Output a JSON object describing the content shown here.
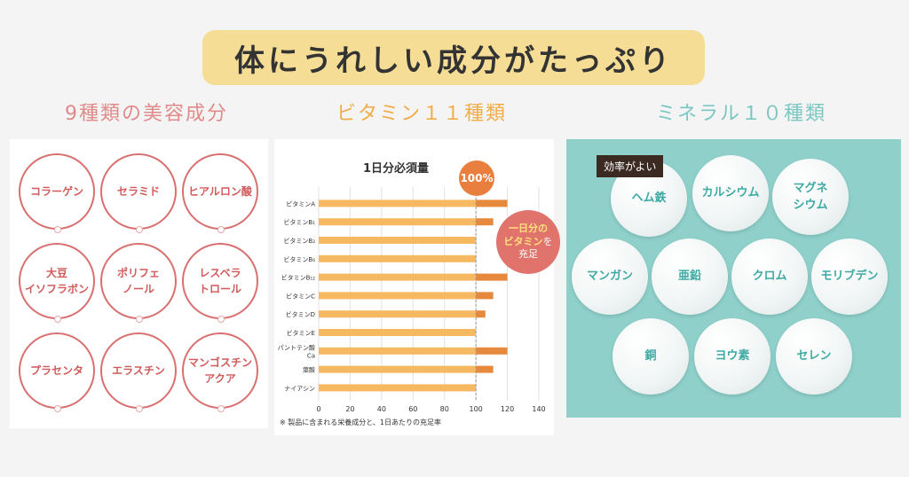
{
  "header": {
    "title": "体にうれしい成分がたっぷり"
  },
  "sections": {
    "beauty": {
      "title": "9種類の美容成分",
      "items": [
        "コラーゲン",
        "セラミド",
        "ヒアルロン酸",
        "大豆\nイソフラボン",
        "ポリフェ\nノール",
        "レスベラ\nトロール",
        "プラセンタ",
        "エラスチン",
        "マンゴスチン\nアクア"
      ]
    },
    "vitamin": {
      "title": "ビタミン１１種類",
      "badge_100": "100%",
      "callout": {
        "line1": "一日分の",
        "line2": "ビタミン",
        "line3": "を",
        "line4": "充足"
      }
    },
    "mineral": {
      "title": "ミネラル１０種類",
      "tag": "効率がよい",
      "items": [
        "ヘム鉄",
        "カルシウム",
        "マグネ\nシウム",
        "マンガン",
        "亜鉛",
        "クロム",
        "モリブデン",
        "銅",
        "ヨウ素",
        "セレン"
      ]
    }
  },
  "colors": {
    "bar": "#f6b861",
    "bar_over": "#e6893c",
    "beauty": "#d96f6f",
    "mineral_bg": "#8fd0cb"
  },
  "chart_data": {
    "type": "bar",
    "orientation": "horizontal",
    "title": "1日分必須量",
    "categories": [
      "ビタミンA",
      "ビタミンB₁",
      "ビタミンB₂",
      "ビタミンB₆",
      "ビタミンB₁₂",
      "ビタミンC",
      "ビタミンD",
      "ビタミンE",
      "パントテン酸\nCa",
      "葉酸",
      "ナイアシン"
    ],
    "values": [
      120,
      111,
      100,
      100,
      120,
      111,
      106,
      100,
      120,
      111,
      100
    ],
    "xlim": [
      0,
      140
    ],
    "xticks": [
      0,
      20,
      40,
      60,
      80,
      100,
      120,
      140
    ],
    "reference_line": 100,
    "note": "※ 製品に含まれる栄養成分と、1日あたりの充足率"
  }
}
